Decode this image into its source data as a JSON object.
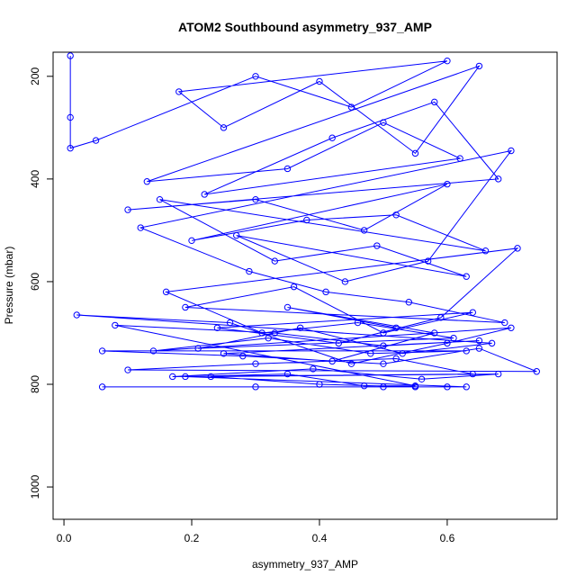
{
  "chart_data": {
    "type": "line",
    "title": "ATOM2 Southbound asymmetry_937_AMP",
    "xlabel": "asymmetry_937_AMP",
    "ylabel": "Pressure (mbar)",
    "color": "#0000ff",
    "markers": true,
    "y_inverted": true,
    "grid": false,
    "xlim": [
      -0.017,
      0.772
    ],
    "ylim": [
      153,
      1063
    ],
    "xticks": [
      {
        "value": 0,
        "label": "0.0"
      },
      0.2,
      0.4,
      0.6
    ],
    "yticks": [
      200,
      400,
      600,
      800,
      1000
    ],
    "x": [
      0.01,
      0.01,
      0.01,
      0.05,
      0.3,
      0.45,
      0.6,
      0.18,
      0.25,
      0.4,
      0.55,
      0.65,
      0.13,
      0.35,
      0.5,
      0.62,
      0.22,
      0.42,
      0.58,
      0.68,
      0.1,
      0.3,
      0.47,
      0.6,
      0.2,
      0.38,
      0.52,
      0.66,
      0.15,
      0.33,
      0.49,
      0.63,
      0.27,
      0.44,
      0.57,
      0.7,
      0.12,
      0.29,
      0.41,
      0.54,
      0.69,
      0.19,
      0.36,
      0.5,
      0.64,
      0.24,
      0.43,
      0.59,
      0.71,
      0.16,
      0.31,
      0.46,
      0.61,
      0.21,
      0.37,
      0.53,
      0.67,
      0.02,
      0.26,
      0.45,
      0.6,
      0.7,
      0.14,
      0.32,
      0.48,
      0.63,
      0.06,
      0.28,
      0.5,
      0.65,
      0.74,
      0.1,
      0.3,
      0.52,
      0.64,
      0.17,
      0.39,
      0.56,
      0.68,
      0.23,
      0.4,
      0.55,
      0.6,
      0.06,
      0.3,
      0.5,
      0.63,
      0.19,
      0.35,
      0.47,
      0.55,
      0.08,
      0.33,
      0.5,
      0.65,
      0.25,
      0.42,
      0.58,
      0.35,
      0.52
    ],
    "values": [
      160,
      280,
      340,
      325,
      200,
      260,
      170,
      230,
      300,
      210,
      350,
      180,
      405,
      380,
      290,
      360,
      430,
      320,
      250,
      400,
      460,
      440,
      500,
      410,
      520,
      480,
      470,
      540,
      440,
      560,
      530,
      590,
      510,
      600,
      560,
      345,
      495,
      580,
      620,
      640,
      680,
      650,
      610,
      700,
      660,
      690,
      720,
      670,
      535,
      620,
      700,
      680,
      710,
      730,
      690,
      740,
      720,
      665,
      680,
      760,
      720,
      690,
      735,
      710,
      740,
      735,
      735,
      745,
      760,
      730,
      775,
      772,
      760,
      750,
      780,
      785,
      770,
      790,
      780,
      785,
      800,
      805,
      805,
      805,
      805,
      805,
      805,
      785,
      780,
      803,
      803,
      685,
      700,
      725,
      715,
      740,
      755,
      700,
      650,
      690
    ]
  }
}
